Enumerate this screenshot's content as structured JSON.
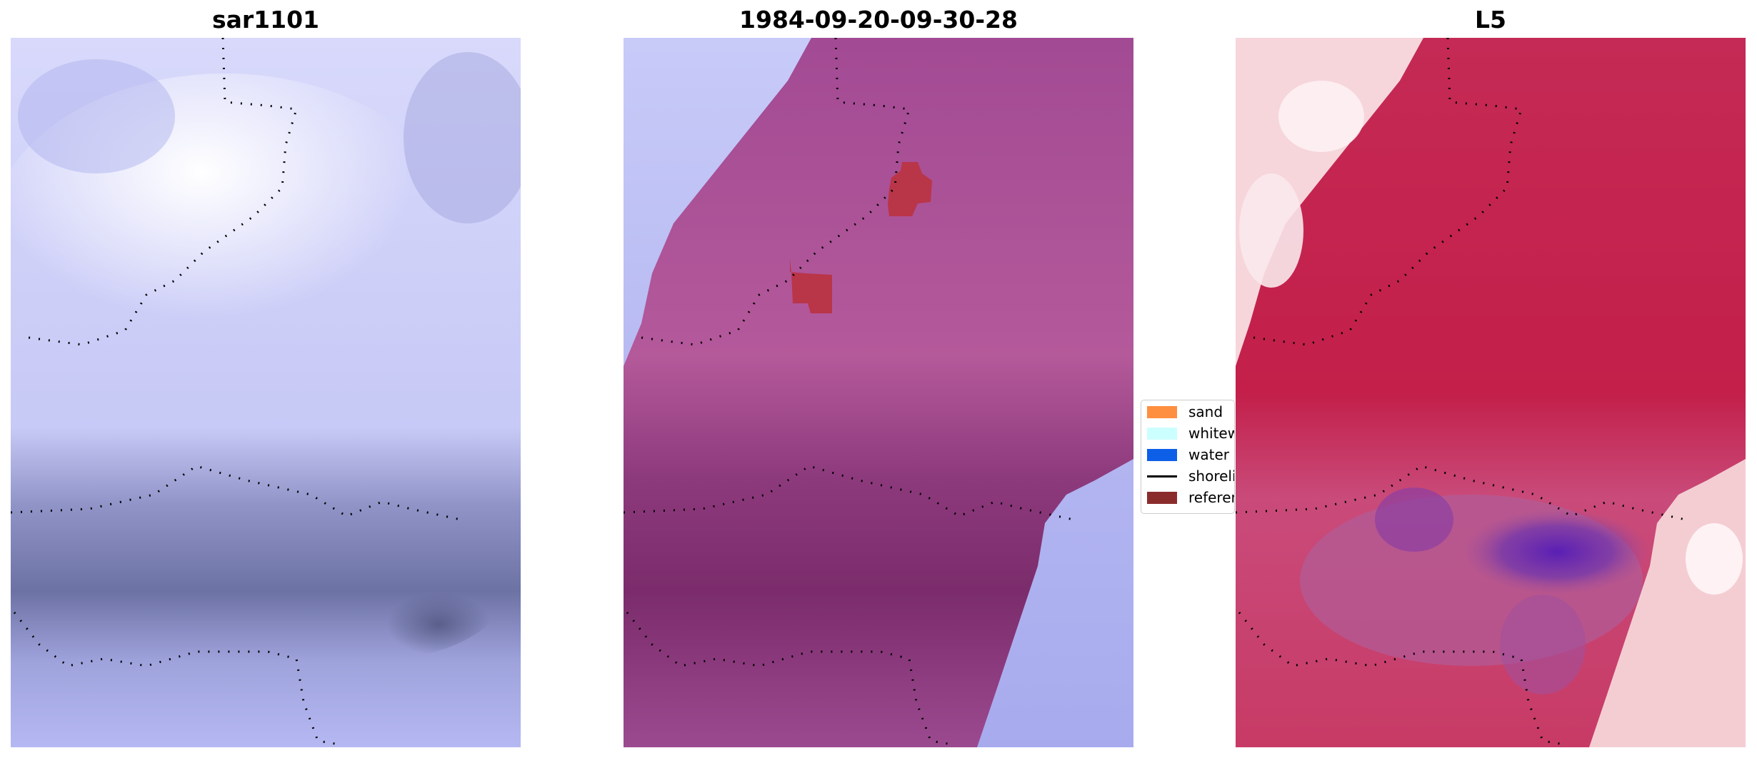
{
  "panels": [
    {
      "title": "sar1101"
    },
    {
      "title": "1984-09-20-09-30-28"
    },
    {
      "title": "L5"
    }
  ],
  "legend": [
    {
      "label": "sand",
      "kind": "patch",
      "color": "#ff8f40"
    },
    {
      "label": "whitewater",
      "kind": "patch",
      "color": "#ccffff"
    },
    {
      "label": "water",
      "kind": "patch",
      "color": "#0d5fe8"
    },
    {
      "label": "shoreline",
      "kind": "line",
      "color": "#000000"
    },
    {
      "label": "reference",
      "kind": "patch",
      "color": "#8b2c2c"
    }
  ],
  "colors": {
    "sar_light": "#f6f6ff",
    "sar_mid": "#b8baf0",
    "sar_dark": "#5d6390",
    "class_overlay": "#a8508f",
    "class_overlay_dark": "#7a2c6a",
    "reference": "#b93548",
    "l5_light": "#fbe8ea",
    "l5_red": "#c8234c",
    "l5_purple": "#6d2aa8",
    "shoreline_dots": "#000000"
  }
}
